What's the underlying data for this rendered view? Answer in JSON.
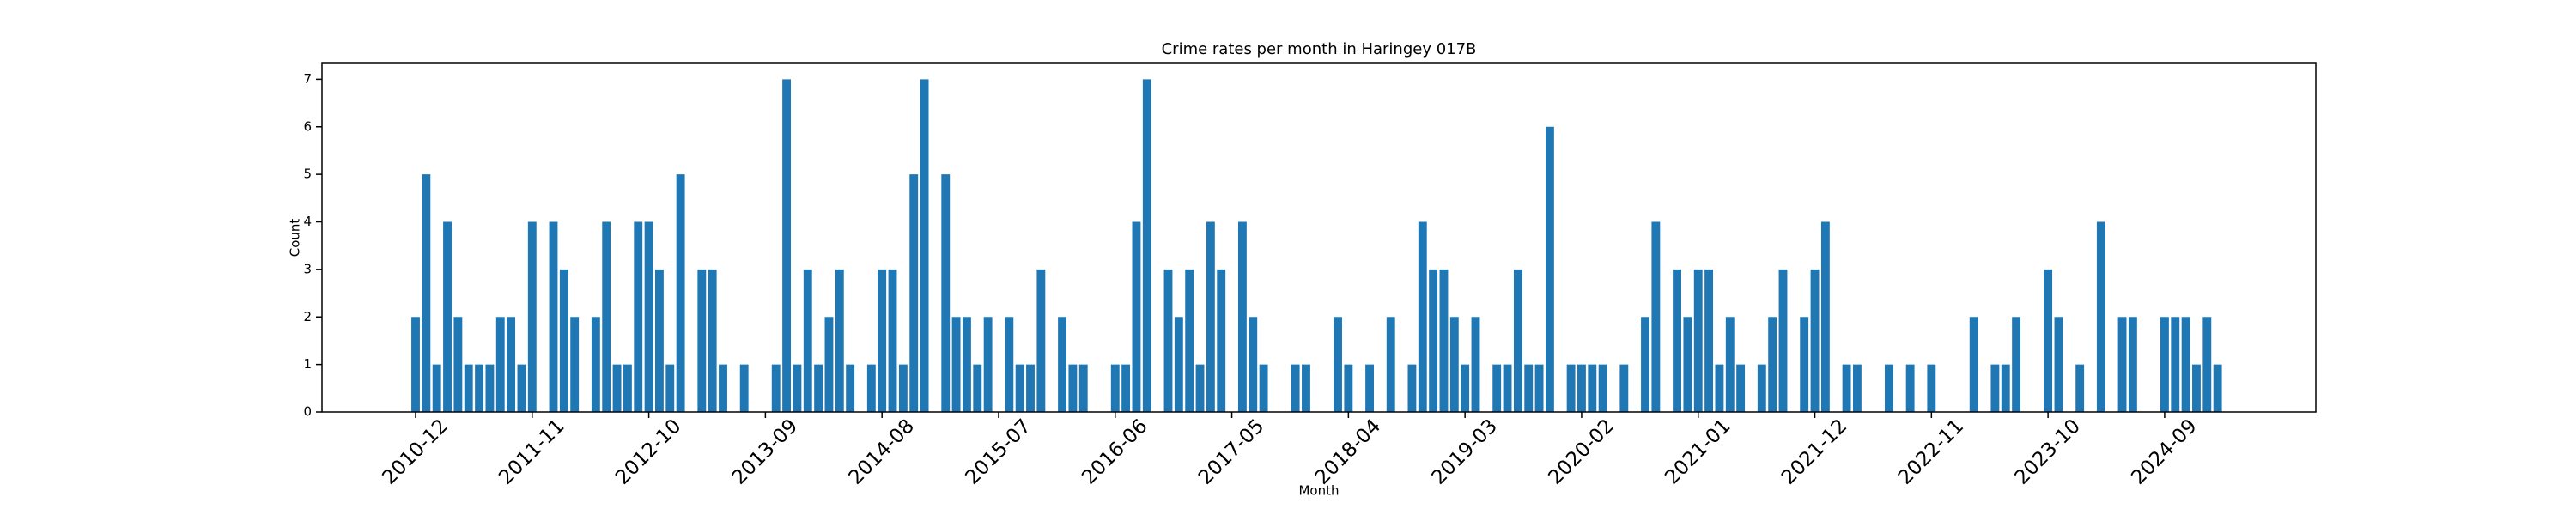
{
  "chart_data": {
    "type": "bar",
    "title": "Crime rates per month in Haringey 017B",
    "x_label": "Month",
    "y_label": "Count",
    "color": "#1f77b4",
    "categories": [
      "2010-12",
      null,
      null,
      null,
      null,
      null,
      null,
      null,
      null,
      null,
      null,
      "2011-11",
      null,
      null,
      null,
      null,
      null,
      null,
      null,
      null,
      null,
      null,
      "2012-10",
      null,
      null,
      null,
      null,
      null,
      null,
      null,
      null,
      null,
      null,
      "2013-09",
      null,
      null,
      null,
      null,
      null,
      null,
      null,
      null,
      null,
      null,
      "2014-08",
      null,
      null,
      null,
      null,
      null,
      null,
      null,
      null,
      null,
      null,
      "2015-07",
      null,
      null,
      null,
      null,
      null,
      null,
      null,
      null,
      null,
      null,
      "2016-06",
      null,
      null,
      null,
      null,
      null,
      null,
      null,
      null,
      null,
      null,
      "2017-05",
      null,
      null,
      null,
      null,
      null,
      null,
      null,
      null,
      null,
      null,
      "2018-04",
      null,
      null,
      null,
      null,
      null,
      null,
      null,
      null,
      null,
      null,
      "2019-03",
      null,
      null,
      null,
      null,
      null,
      null,
      null,
      null,
      null,
      null,
      "2020-02",
      null,
      null,
      null,
      null,
      null,
      null,
      null,
      null,
      null,
      null,
      "2021-01",
      null,
      null,
      null,
      null,
      null,
      null,
      null,
      null,
      null,
      null,
      "2021-12",
      null,
      null,
      null,
      null,
      null,
      null,
      null,
      null,
      null,
      null,
      "2022-11",
      null,
      null,
      null,
      null,
      null,
      null,
      null,
      null,
      null,
      null,
      "2023-10",
      null,
      null,
      null,
      null,
      null,
      null,
      null,
      null,
      null,
      null,
      "2024-09",
      null,
      null,
      null,
      null,
      null
    ],
    "values": [
      2,
      5,
      1,
      4,
      2,
      1,
      1,
      1,
      2,
      2,
      1,
      4,
      0,
      4,
      3,
      2,
      0,
      2,
      4,
      1,
      1,
      4,
      4,
      3,
      1,
      5,
      0,
      3,
      3,
      1,
      0,
      1,
      0,
      0,
      1,
      7,
      1,
      3,
      1,
      2,
      3,
      1,
      0,
      1,
      3,
      3,
      1,
      5,
      7,
      0,
      5,
      2,
      2,
      1,
      2,
      0,
      2,
      1,
      1,
      3,
      0,
      2,
      1,
      1,
      0,
      0,
      1,
      1,
      4,
      7,
      0,
      3,
      2,
      3,
      1,
      4,
      3,
      0,
      4,
      2,
      1,
      0,
      0,
      1,
      1,
      0,
      0,
      2,
      1,
      0,
      1,
      0,
      2,
      0,
      1,
      4,
      3,
      3,
      2,
      1,
      2,
      0,
      1,
      1,
      3,
      1,
      1,
      6,
      0,
      1,
      1,
      1,
      1,
      0,
      1,
      0,
      2,
      4,
      0,
      3,
      2,
      3,
      3,
      1,
      2,
      1,
      0,
      1,
      2,
      3,
      0,
      2,
      3,
      4,
      0,
      1,
      1,
      0,
      0,
      1,
      0,
      1,
      0,
      1,
      0,
      0,
      0,
      2,
      0,
      1,
      1,
      2,
      0,
      0,
      3,
      2,
      0,
      1,
      0,
      4,
      0,
      2,
      2,
      0,
      0,
      2,
      2,
      2,
      1,
      2,
      1
    ],
    "ylim": [
      0,
      7.35
    ],
    "yticks": [
      0,
      1,
      2,
      3,
      4,
      5,
      6,
      7
    ]
  }
}
